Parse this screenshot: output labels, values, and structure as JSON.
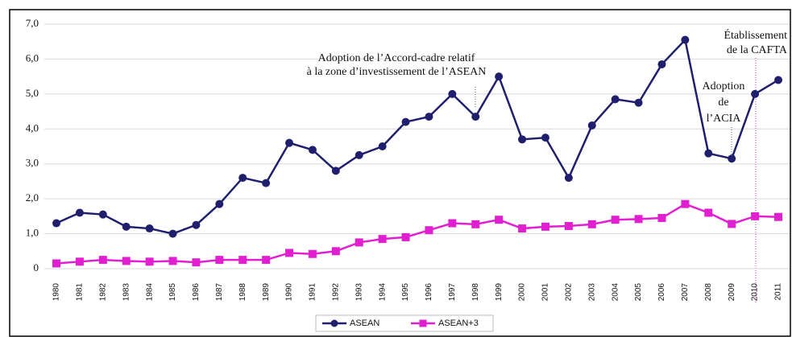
{
  "chart_data": {
    "type": "line",
    "categories": [
      "1980",
      "1981",
      "1982",
      "1983",
      "1984",
      "1985",
      "1986",
      "1987",
      "1988",
      "1989",
      "1990",
      "1991",
      "1992",
      "1993",
      "1994",
      "1995",
      "1996",
      "1997",
      "1998",
      "1999",
      "2000",
      "2001",
      "2002",
      "2003",
      "2004",
      "2005",
      "2006",
      "2007",
      "2008",
      "2009",
      "2010",
      "2011"
    ],
    "series": [
      {
        "name": "ASEAN",
        "color": "#1f1f6e",
        "values": [
          1.3,
          1.6,
          1.55,
          1.2,
          1.15,
          1.0,
          1.25,
          1.85,
          2.6,
          2.45,
          3.6,
          3.4,
          2.8,
          3.25,
          3.5,
          4.2,
          4.35,
          5.0,
          4.35,
          5.5,
          3.7,
          3.75,
          2.6,
          4.1,
          4.85,
          4.75,
          5.85,
          6.55,
          3.3,
          3.15,
          5.0,
          5.4
        ]
      },
      {
        "name": "ASEAN+3",
        "color": "#e020d0",
        "values": [
          0.15,
          0.2,
          0.25,
          0.22,
          0.2,
          0.22,
          0.18,
          0.25,
          0.25,
          0.25,
          0.45,
          0.42,
          0.5,
          0.75,
          0.85,
          0.9,
          1.1,
          1.3,
          1.27,
          1.4,
          1.15,
          1.2,
          1.22,
          1.27,
          1.4,
          1.42,
          1.45,
          1.85,
          1.6,
          1.28,
          1.5,
          1.48
        ]
      }
    ],
    "ylim": [
      0,
      7
    ],
    "yticks": [
      0,
      {
        "value": 1,
        "label": "1,0"
      },
      {
        "value": 2,
        "label": "2,0"
      },
      {
        "value": 3,
        "label": "3,0"
      },
      {
        "value": 4,
        "label": "4,0"
      },
      {
        "value": 5,
        "label": "5,0"
      },
      {
        "value": 6,
        "label": "6,0"
      },
      {
        "value": 7,
        "label": "7,0"
      }
    ],
    "grid": true,
    "annotations": [
      [
        "Adoption de l’Accord-cadre relatif",
        "à la zone d’investissement de l’ASEAN"
      ],
      [
        "Adoption",
        "de",
        "l’ACIA"
      ],
      [
        "Établissement",
        "de la CAFTA"
      ]
    ],
    "legend": "bottom"
  }
}
